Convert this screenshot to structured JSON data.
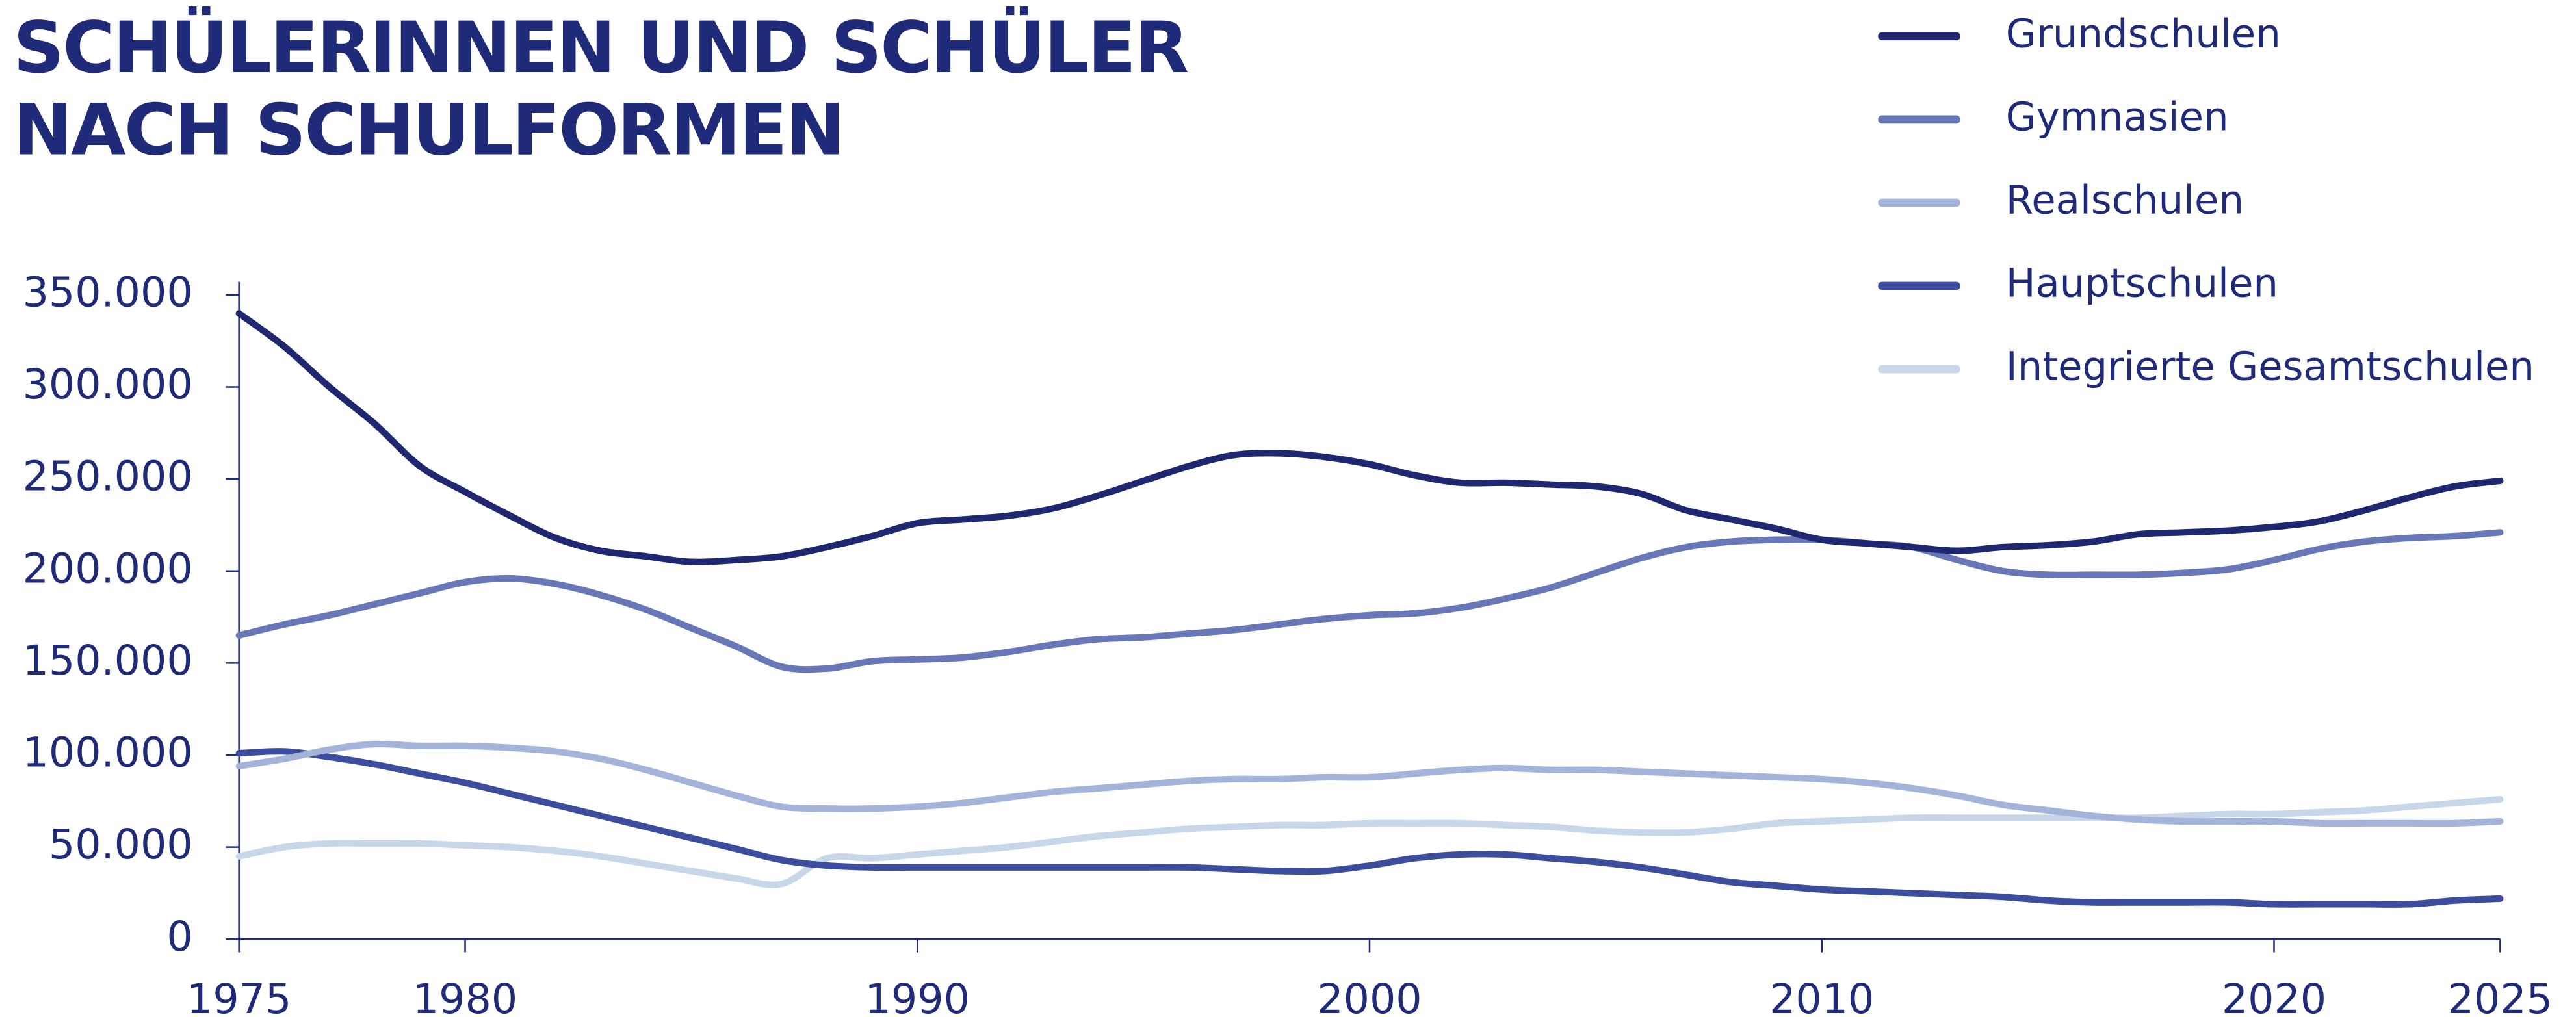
{
  "chart_data": {
    "type": "line",
    "title": [
      "SCHÜLERINNEN UND SCHÜLER",
      "NACH SCHULFORMEN"
    ],
    "x": [
      1975,
      1976,
      1977,
      1978,
      1979,
      1980,
      1981,
      1982,
      1983,
      1984,
      1985,
      1986,
      1987,
      1988,
      1989,
      1990,
      1991,
      1992,
      1993,
      1994,
      1995,
      1996,
      1997,
      1998,
      1999,
      2000,
      2001,
      2002,
      2003,
      2004,
      2005,
      2006,
      2007,
      2008,
      2009,
      2010,
      2011,
      2012,
      2013,
      2014,
      2015,
      2016,
      2017,
      2018,
      2019,
      2020,
      2021,
      2022,
      2023,
      2024,
      2025
    ],
    "series": [
      {
        "name": "Grundschulen",
        "color": "#1e2770",
        "values": [
          340000,
          322000,
          300000,
          280000,
          257000,
          243000,
          230000,
          218000,
          211000,
          208000,
          205000,
          206000,
          208000,
          213000,
          219000,
          226000,
          228000,
          230000,
          234000,
          241000,
          249000,
          257000,
          263000,
          264000,
          262000,
          258000,
          252000,
          248000,
          248000,
          247000,
          246000,
          242000,
          233000,
          228000,
          223000,
          217000,
          215000,
          213000,
          211000,
          213000,
          214000,
          216000,
          220000,
          221000,
          222000,
          224000,
          227000,
          233000,
          240000,
          246000,
          249000
        ]
      },
      {
        "name": "Gymnasien",
        "color": "#6877b8",
        "values": [
          165000,
          171000,
          176000,
          182000,
          188000,
          194000,
          196000,
          193000,
          187000,
          179000,
          169000,
          159000,
          148000,
          147000,
          151000,
          152000,
          153000,
          156000,
          160000,
          163000,
          164000,
          166000,
          168000,
          171000,
          174000,
          176000,
          177000,
          180000,
          185000,
          191000,
          199000,
          207000,
          213000,
          216000,
          217000,
          217000,
          215000,
          213000,
          206000,
          200000,
          198000,
          198000,
          198000,
          199000,
          201000,
          206000,
          212000,
          216000,
          218000,
          219000,
          221000
        ]
      },
      {
        "name": "Realschulen",
        "color": "#a4b3da",
        "values": [
          94000,
          98000,
          103000,
          106000,
          105000,
          105000,
          104000,
          102000,
          98000,
          92000,
          85000,
          78000,
          72000,
          71000,
          71000,
          72000,
          74000,
          77000,
          80000,
          82000,
          84000,
          86000,
          87000,
          87000,
          88000,
          88000,
          90000,
          92000,
          93000,
          92000,
          92000,
          91000,
          90000,
          89000,
          88000,
          87000,
          85000,
          82000,
          78000,
          73000,
          70000,
          67000,
          65000,
          64000,
          64000,
          64000,
          63000,
          63000,
          63000,
          63000,
          64000
        ]
      },
      {
        "name": "Hauptschulen",
        "color": "#3d4d9e",
        "values": [
          101000,
          102000,
          99000,
          95000,
          90000,
          85000,
          79000,
          73000,
          67000,
          61000,
          55000,
          49000,
          43000,
          40000,
          39000,
          39000,
          39000,
          39000,
          39000,
          39000,
          39000,
          39000,
          38000,
          37000,
          37000,
          40000,
          44000,
          46000,
          46000,
          44000,
          42000,
          39000,
          35000,
          31000,
          29000,
          27000,
          26000,
          25000,
          24000,
          23000,
          21000,
          20000,
          20000,
          20000,
          20000,
          19000,
          19000,
          19000,
          19000,
          21000,
          22000
        ]
      },
      {
        "name": "Integrierte Gesamtschulen",
        "color": "#c8d6ea",
        "values": [
          45000,
          50000,
          52000,
          52000,
          52000,
          51000,
          50000,
          48000,
          45000,
          41000,
          37000,
          33000,
          30000,
          44000,
          44000,
          46000,
          48000,
          50000,
          53000,
          56000,
          58000,
          60000,
          61000,
          62000,
          62000,
          63000,
          63000,
          63000,
          62000,
          61000,
          59000,
          58000,
          58000,
          60000,
          63000,
          64000,
          65000,
          66000,
          66000,
          66000,
          66000,
          66000,
          66000,
          67000,
          68000,
          68000,
          69000,
          70000,
          72000,
          74000,
          76000
        ]
      }
    ],
    "xlim": [
      1975,
      2025
    ],
    "xticks": [
      1975,
      1980,
      1990,
      2000,
      2010,
      2020,
      2025
    ],
    "ylim": [
      0,
      350000
    ],
    "yticks": [
      0,
      {
        "value": 50000,
        "label": "50.000"
      },
      {
        "value": 100000,
        "label": "100.000"
      },
      {
        "value": 150000,
        "label": "150.000"
      },
      {
        "value": 200000,
        "label": "200.000"
      },
      {
        "value": 250000,
        "label": "250.000"
      },
      {
        "value": 300000,
        "label": "300.000"
      },
      {
        "value": 350000,
        "label": "350.000"
      }
    ],
    "legend": "top-right",
    "grid": false
  }
}
